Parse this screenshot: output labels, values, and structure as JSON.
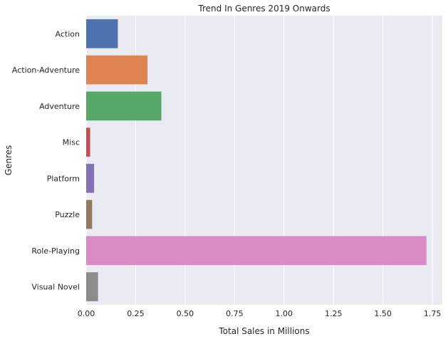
{
  "chart_data": {
    "type": "bar",
    "orientation": "horizontal",
    "title": "Trend In Genres 2019 Onwards",
    "xlabel": "Total Sales in Millions",
    "ylabel": "Genres",
    "categories": [
      "Action",
      "Action-Adventure",
      "Adventure",
      "Misc",
      "Platform",
      "Puzzle",
      "Role-Playing",
      "Visual Novel"
    ],
    "values": [
      0.16,
      0.31,
      0.38,
      0.02,
      0.04,
      0.03,
      1.72,
      0.06
    ],
    "colors": [
      "#4c72b0",
      "#dd8452",
      "#55a868",
      "#c44e52",
      "#8172b3",
      "#937860",
      "#da8bc3",
      "#8c8c8c"
    ],
    "xlim": [
      0,
      1.8
    ],
    "xticks": [
      0.0,
      0.25,
      0.5,
      0.75,
      1.0,
      1.25,
      1.5,
      1.75
    ],
    "xtick_labels": [
      "0.00",
      "0.25",
      "0.50",
      "0.75",
      "1.00",
      "1.25",
      "1.50",
      "1.75"
    ],
    "grid": true,
    "background": "#eaeaf2"
  }
}
